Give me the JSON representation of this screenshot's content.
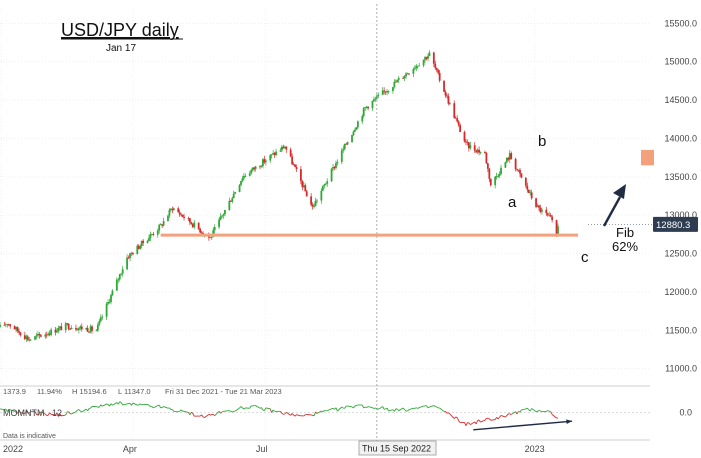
{
  "chart_data": {
    "type": "candlestick",
    "title": "USD/JPY daily",
    "subtitle": "Jan 17",
    "ylim": [
      10800,
      15700
    ],
    "y_ticks": [
      "15500.0",
      "15000.0",
      "14500.0",
      "14000.0",
      "13500.0",
      "13000.0",
      "12500.0",
      "12000.0",
      "11500.0",
      "11000.0"
    ],
    "y_tick_values": [
      15500,
      15000,
      14500,
      14000,
      13500,
      13000,
      12500,
      12000,
      11500,
      11000
    ],
    "x_ticks": [
      "2022",
      "Apr",
      "Jul",
      "2023"
    ],
    "x_tick_dates": [
      "2022-01-01",
      "2022-04-01",
      "2022-07-01",
      "2023-01-01"
    ],
    "x_range": [
      "2021-12-31",
      "2023-03-21"
    ],
    "crosshair_label": "Thu 15 Sep 2022",
    "crosshair_date": "2022-09-15",
    "last_price_label": "12880.3",
    "last_price": 12880.3,
    "info_bar": [
      "1373.9",
      "11.94%",
      "H 15194.6",
      "L 11347.0",
      "Fri 31 Dec 2021 - Tue 21 Mar 2023"
    ],
    "data_note": "Data is indicative",
    "fib_level": 12740,
    "fib_line_from": "2022-04-20",
    "fib_line_to": "2023-01-17",
    "target_zone": [
      13650,
      13850
    ],
    "anchors": [
      {
        "date": "2021-12-31",
        "price": 11540
      },
      {
        "date": "2022-01-05",
        "price": 11600
      },
      {
        "date": "2022-01-20",
        "price": 11380
      },
      {
        "date": "2022-02-15",
        "price": 11560
      },
      {
        "date": "2022-03-07",
        "price": 11500
      },
      {
        "date": "2022-03-28",
        "price": 12450
      },
      {
        "date": "2022-04-20",
        "price": 12860
      },
      {
        "date": "2022-04-28",
        "price": 13100
      },
      {
        "date": "2022-05-24",
        "price": 12700
      },
      {
        "date": "2022-06-15",
        "price": 13500
      },
      {
        "date": "2022-07-14",
        "price": 13900
      },
      {
        "date": "2022-08-02",
        "price": 13100
      },
      {
        "date": "2022-09-07",
        "price": 14400
      },
      {
        "date": "2022-10-21",
        "price": 15100
      },
      {
        "date": "2022-11-15",
        "price": 13920
      },
      {
        "date": "2022-11-28",
        "price": 13800
      },
      {
        "date": "2022-12-02",
        "price": 13400
      },
      {
        "date": "2022-12-15",
        "price": 13780
      },
      {
        "date": "2022-12-28",
        "price": 13300
      },
      {
        "date": "2023-01-03",
        "price": 13100
      },
      {
        "date": "2023-01-12",
        "price": 12950
      },
      {
        "date": "2023-01-16",
        "price": 12750
      },
      {
        "date": "2023-01-17",
        "price": 12880
      }
    ],
    "momentum": {
      "label": "MOMNTM",
      "period": "12",
      "ylim": [
        -3.0,
        2.0
      ],
      "y_ticks": [
        "0.0"
      ],
      "y_tick_values": [
        0
      ],
      "anchors": [
        {
          "date": "2021-12-31",
          "value": 0.3
        },
        {
          "date": "2022-02-10",
          "value": -0.3
        },
        {
          "date": "2022-03-20",
          "value": 1.2
        },
        {
          "date": "2022-04-20",
          "value": 0.7
        },
        {
          "date": "2022-05-20",
          "value": -0.5
        },
        {
          "date": "2022-06-20",
          "value": 0.8
        },
        {
          "date": "2022-07-25",
          "value": -0.5
        },
        {
          "date": "2022-09-01",
          "value": 0.9
        },
        {
          "date": "2022-10-01",
          "value": 0.3
        },
        {
          "date": "2022-10-25",
          "value": 0.8
        },
        {
          "date": "2022-11-15",
          "value": -1.5
        },
        {
          "date": "2022-12-10",
          "value": -0.5
        },
        {
          "date": "2022-12-28",
          "value": 0.4
        },
        {
          "date": "2023-01-10",
          "value": 0.2
        },
        {
          "date": "2023-01-17",
          "value": -0.6
        }
      ],
      "divergence_line": [
        {
          "date": "2022-11-20",
          "value": -2.2
        },
        {
          "date": "2023-01-17",
          "value": -1.1
        }
      ]
    }
  },
  "annotations": {
    "wave_a": "a",
    "wave_b": "b",
    "wave_c": "c",
    "fib_line1": "Fib",
    "fib_line2": "62%"
  },
  "colors": {
    "up": "#2ea836",
    "down": "#d62a2a",
    "fib_line": "#f2a27f",
    "target_zone": "#f4a07c",
    "arrow": "#1f2c44",
    "price_label_bg": "#2f3d52",
    "crosshair": "#9a9a9a",
    "grid": "#e8e8e8"
  }
}
